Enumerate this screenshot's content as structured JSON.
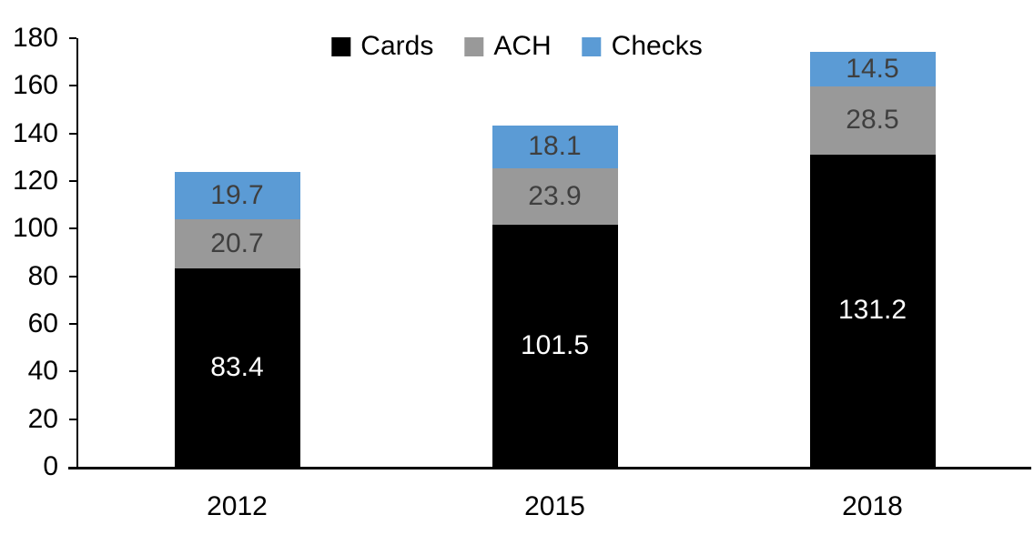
{
  "chart_data": {
    "type": "bar",
    "stacked": true,
    "title": "",
    "xlabel": "",
    "ylabel": "",
    "categories": [
      "2012",
      "2015",
      "2018"
    ],
    "series": [
      {
        "name": "Cards",
        "color": "#000000",
        "label_color": "#ffffff",
        "values": [
          83.4,
          101.5,
          131.2
        ]
      },
      {
        "name": "ACH",
        "color": "#999999",
        "label_color": "#3f3f3f",
        "values": [
          20.7,
          23.9,
          28.5
        ]
      },
      {
        "name": "Checks",
        "color": "#5b9bd5",
        "label_color": "#3f3f3f",
        "values": [
          19.7,
          18.1,
          14.5
        ]
      }
    ],
    "totals": [
      123.8,
      143.5,
      174.2
    ],
    "ylim": [
      0,
      180
    ],
    "yticks": [
      0,
      20,
      40,
      60,
      80,
      100,
      120,
      140,
      160,
      180
    ],
    "grid": false,
    "legend_position": "top-center",
    "legend_labels": [
      "Cards",
      "ACH",
      "Checks"
    ]
  },
  "colors": {
    "background": "#ffffff",
    "axis": "#000000"
  }
}
